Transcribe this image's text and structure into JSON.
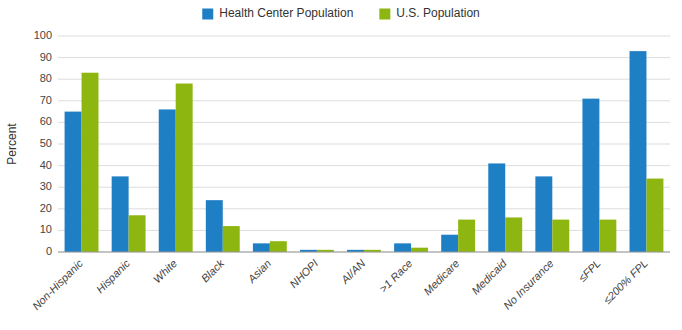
{
  "chart_data": {
    "type": "bar",
    "categories": [
      "Non-Hispanic",
      "Hispanic",
      "White",
      "Black",
      "Asian",
      "NHOPI",
      "AI/AN",
      ">1 Race",
      "Medicare",
      "Medicaid",
      "No Insurance",
      "≤FPL",
      "≤200% FPL"
    ],
    "series": [
      {
        "name": "Health Center Population",
        "color": "#1F7FC4",
        "values": [
          65,
          35,
          66,
          24,
          4,
          1,
          1,
          4,
          8,
          41,
          35,
          71,
          93
        ]
      },
      {
        "name": "U.S. Population",
        "color": "#8DB611",
        "values": [
          83,
          17,
          78,
          12,
          5,
          1,
          1,
          2,
          15,
          16,
          15,
          15,
          34
        ]
      }
    ],
    "y_label": "Percent",
    "ylim": [
      0,
      100
    ],
    "yticks": [
      0,
      10,
      20,
      30,
      40,
      50,
      60,
      70,
      80,
      90,
      100
    ],
    "grid": true,
    "legend": "top"
  }
}
